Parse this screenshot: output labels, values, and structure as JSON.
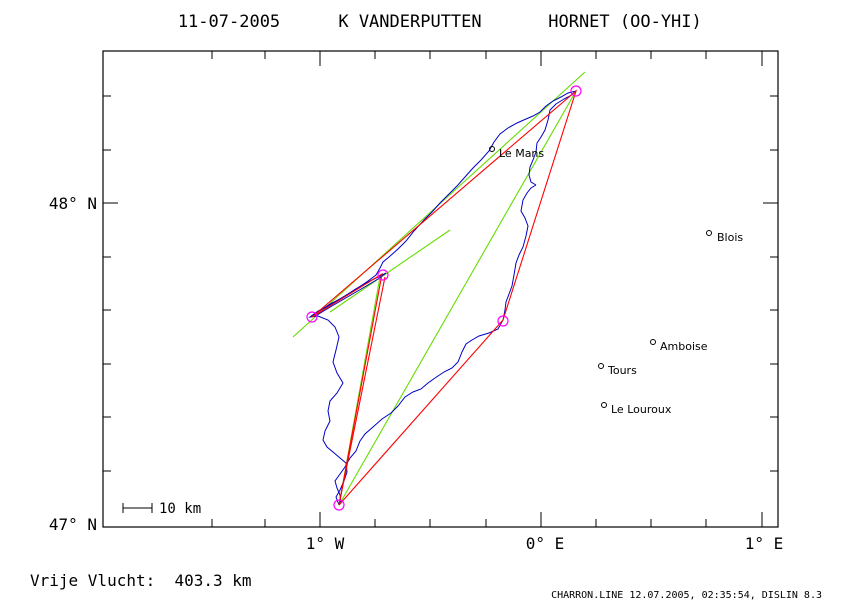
{
  "header": {
    "date": "11-07-2005",
    "pilot": "K VANDERPUTTEN",
    "glider": "HORNET (OO-YHI)"
  },
  "axes": {
    "lat_labels": [
      "48° N",
      "47° N"
    ],
    "lon_labels": [
      "1° W",
      "0° E",
      "1° E"
    ]
  },
  "scale_label": "10 km",
  "footer": {
    "distance": "Vrije Vlucht:  403.3 km",
    "credit": "CHARRON.LINE 12.07.2005, 02:35:54, DISLIN 8.3"
  },
  "towns": [
    {
      "name": "Le Mans"
    },
    {
      "name": "Blois"
    },
    {
      "name": "Amboise"
    },
    {
      "name": "Tours"
    },
    {
      "name": "Le Louroux"
    }
  ],
  "colors": {
    "frame": "#000000",
    "track": "#0000c8",
    "route": "#ff0000",
    "sector": "#66dd00",
    "turnpoint": "#ff00ff"
  }
}
